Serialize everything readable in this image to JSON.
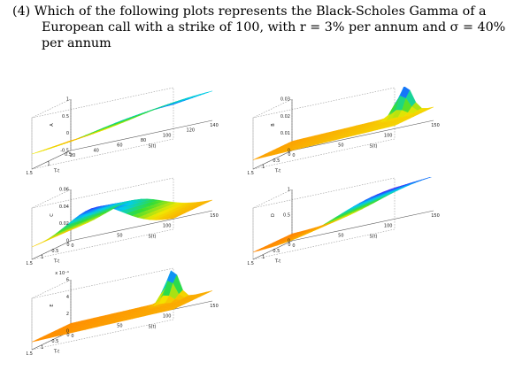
{
  "question": {
    "lines": [
      "(4) Which of the following plots represents the Black-Scholes Gamma of a",
      "European call with a strike of 100, with r = 3% per annum and σ = 40%",
      "per annum"
    ]
  },
  "plots": [
    {
      "id": "A",
      "zlabel": "A",
      "xlabel": "S(t)",
      "ylabel": "T-t",
      "x_ticks": [
        "20",
        "40",
        "60",
        "80",
        "100",
        "120",
        "140"
      ],
      "y_ticks": [
        "1.5",
        "1",
        "0.5"
      ],
      "z_ticks": [
        "1",
        "0.5",
        "0",
        "-0.5"
      ],
      "z_prefix": "",
      "shape": "call-delta"
    },
    {
      "id": "B",
      "zlabel": "B",
      "xlabel": "S(t)",
      "ylabel": "T-t",
      "x_ticks": [
        "0",
        "50",
        "100",
        "150"
      ],
      "y_ticks": [
        "1.5",
        "1",
        "0.5",
        "0"
      ],
      "z_ticks": [
        "0.03",
        "0.02",
        "0.01",
        "0"
      ],
      "z_prefix": "",
      "shape": "spike-low"
    },
    {
      "id": "C",
      "zlabel": "C",
      "xlabel": "S(t)",
      "ylabel": "T-t",
      "x_ticks": [
        "0",
        "50",
        "100",
        "150"
      ],
      "y_ticks": [
        "1.5",
        "1",
        "0.5",
        "0"
      ],
      "z_ticks": [
        "0.06",
        "0.04",
        "0.02",
        "0"
      ],
      "z_prefix": "",
      "shape": "dome"
    },
    {
      "id": "D",
      "zlabel": "D",
      "xlabel": "S(t)",
      "ylabel": "T-t",
      "x_ticks": [
        "0",
        "50",
        "100",
        "150"
      ],
      "y_ticks": [
        "1.5",
        "1",
        "0.5",
        "0"
      ],
      "z_ticks": [
        "1",
        "0.5",
        "0"
      ],
      "z_prefix": "",
      "shape": "ramp"
    },
    {
      "id": "E",
      "zlabel": "E",
      "xlabel": "S(t)",
      "ylabel": "T-t",
      "x_ticks": [
        "0",
        "50",
        "100",
        "150"
      ],
      "y_ticks": [
        "1.5",
        "1",
        "0.5",
        "0"
      ],
      "z_ticks": [
        "6",
        "4",
        "2",
        "0"
      ],
      "z_prefix": "x 10⁻⁴",
      "shape": "spike-tiny"
    }
  ]
}
